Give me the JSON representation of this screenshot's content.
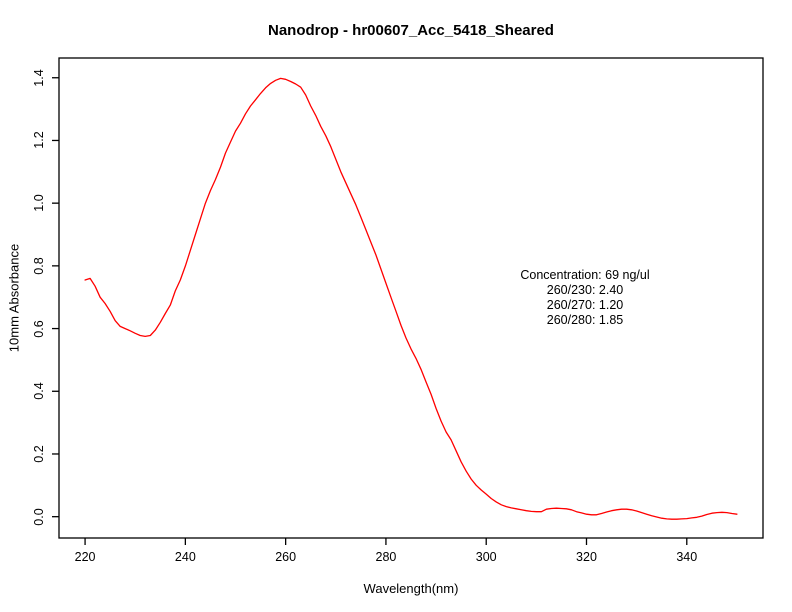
{
  "window": {
    "background_color": "#ffffff",
    "text_color": "#000000"
  },
  "chart_data": {
    "type": "line",
    "title": "Nanodrop - hr00607_Acc_5418_Sheared",
    "xlabel": "Wavelength(nm)",
    "ylabel": "10mm Absorbance",
    "xlim": [
      214.8,
      355.2
    ],
    "ylim": [
      -0.068,
      1.463
    ],
    "xticks": [
      220,
      240,
      260,
      280,
      300,
      320,
      340
    ],
    "yticks": [
      "0.0",
      "0.2",
      "0.4",
      "0.6",
      "0.8",
      "1.0",
      "1.2",
      "1.4"
    ],
    "grid": false,
    "legend": "none",
    "line_color": "#ff0000",
    "axis_color": "#000000",
    "annotation": {
      "lines": [
        "Concentration: 69 ng/ul",
        "260/230: 2.40",
        "260/270: 1.20",
        "260/280: 1.85"
      ]
    },
    "series": [
      {
        "name": "absorbance-spectrum",
        "x": [
          220,
          221,
          222,
          223,
          224,
          225,
          226,
          227,
          228,
          229,
          230,
          231,
          232,
          233,
          234,
          235,
          236,
          237,
          238,
          239,
          240,
          241,
          242,
          243,
          244,
          245,
          246,
          247,
          248,
          249,
          250,
          251,
          252,
          253,
          254,
          255,
          256,
          257,
          258,
          259,
          260,
          261,
          262,
          263,
          264,
          265,
          266,
          267,
          268,
          269,
          270,
          271,
          272,
          273,
          274,
          275,
          276,
          277,
          278,
          279,
          280,
          281,
          282,
          283,
          284,
          285,
          286,
          287,
          288,
          289,
          290,
          291,
          292,
          293,
          294,
          295,
          296,
          297,
          298,
          299,
          300,
          301,
          302,
          303,
          304,
          305,
          306,
          307,
          308,
          309,
          310,
          311,
          312,
          313,
          314,
          315,
          316,
          317,
          318,
          319,
          320,
          321,
          322,
          323,
          324,
          325,
          326,
          327,
          328,
          329,
          330,
          331,
          332,
          333,
          334,
          335,
          336,
          337,
          338,
          339,
          340,
          341,
          342,
          343,
          344,
          345,
          346,
          347,
          348,
          349,
          350
        ],
        "y": [
          0.755,
          0.76,
          0.735,
          0.7,
          0.68,
          0.655,
          0.625,
          0.607,
          0.6,
          0.593,
          0.585,
          0.578,
          0.575,
          0.578,
          0.595,
          0.62,
          0.648,
          0.675,
          0.72,
          0.755,
          0.8,
          0.85,
          0.9,
          0.95,
          1.0,
          1.04,
          1.075,
          1.115,
          1.16,
          1.195,
          1.23,
          1.255,
          1.285,
          1.31,
          1.33,
          1.35,
          1.368,
          1.382,
          1.392,
          1.398,
          1.395,
          1.388,
          1.38,
          1.37,
          1.345,
          1.31,
          1.28,
          1.245,
          1.215,
          1.18,
          1.14,
          1.1,
          1.065,
          1.03,
          0.995,
          0.955,
          0.915,
          0.875,
          0.835,
          0.79,
          0.745,
          0.7,
          0.655,
          0.61,
          0.57,
          0.535,
          0.505,
          0.47,
          0.43,
          0.39,
          0.345,
          0.305,
          0.27,
          0.245,
          0.21,
          0.175,
          0.145,
          0.12,
          0.1,
          0.085,
          0.072,
          0.058,
          0.047,
          0.038,
          0.032,
          0.028,
          0.025,
          0.022,
          0.019,
          0.017,
          0.016,
          0.016,
          0.024,
          0.026,
          0.027,
          0.026,
          0.025,
          0.022,
          0.016,
          0.012,
          0.008,
          0.006,
          0.006,
          0.01,
          0.015,
          0.019,
          0.022,
          0.024,
          0.024,
          0.022,
          0.018,
          0.013,
          0.008,
          0.003,
          -0.001,
          -0.005,
          -0.007,
          -0.008,
          -0.008,
          -0.007,
          -0.006,
          -0.004,
          -0.002,
          0.002,
          0.007,
          0.011,
          0.013,
          0.014,
          0.013,
          0.01,
          0.008
        ]
      }
    ]
  }
}
